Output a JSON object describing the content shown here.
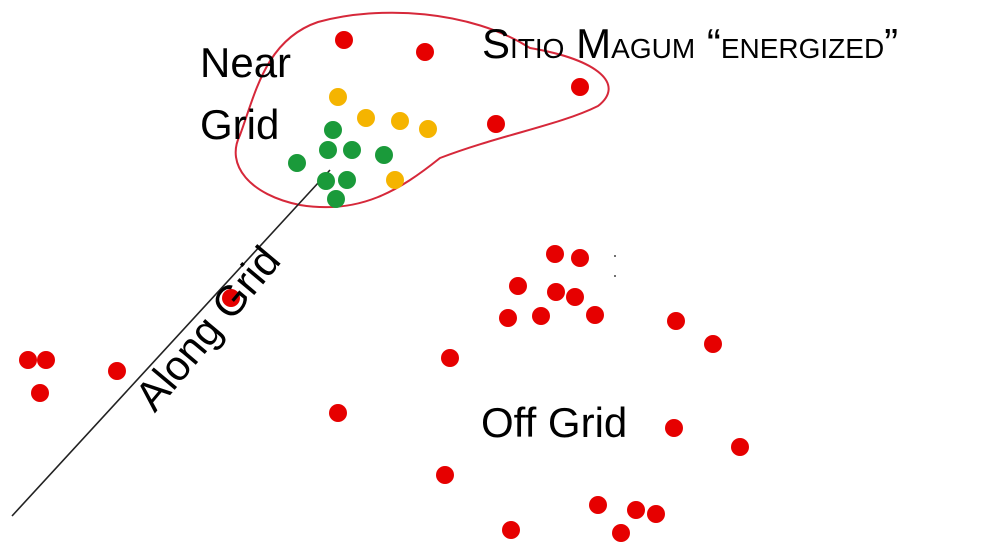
{
  "labels": {
    "near_line1": "Near",
    "near_line2": "Grid",
    "along": "Along Grid",
    "off": "Off Grid",
    "title": {
      "big1": "S",
      "small1": "ITIO",
      "big2": "M",
      "small2": "AGUM",
      "open_quote": "“",
      "small3": "ENERGIZED",
      "close_quote": "”"
    }
  },
  "colors": {
    "off_grid": "#e60000",
    "partial": "#f5b400",
    "energized": "#1a9a3a",
    "boundary": "#d6283a",
    "grid_line": "#222222"
  },
  "legend_groups": [
    "red",
    "orange",
    "green"
  ]
}
